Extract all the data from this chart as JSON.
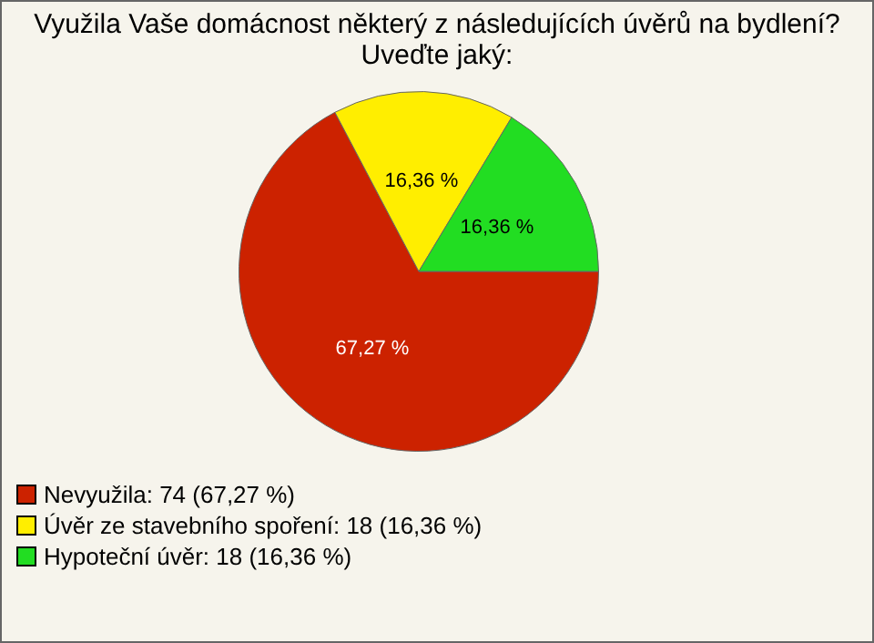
{
  "chart_data": {
    "type": "pie",
    "title": "Využila Vaše domácnost některý z následujících úvěrů na bydlení? Uveďte jaký:",
    "categories": [
      "Nevyužila: 74 (67,27 %)",
      "Úvěr ze stavebního spoření: 18 (16,36 %)",
      "Hypoteční úvěr: 18 (16,36 %)"
    ],
    "values": [
      67.27,
      16.36,
      16.36
    ],
    "colors": [
      "#cc2200",
      "#ffee00",
      "#22dd22"
    ],
    "value_labels": [
      "67,27 %",
      "16,36 %",
      "16,36 %"
    ],
    "legend": "bottom left"
  }
}
